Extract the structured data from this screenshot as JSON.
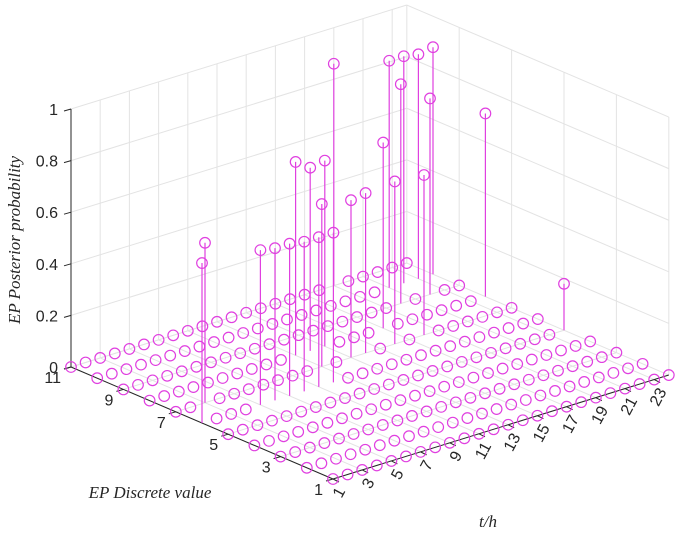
{
  "chart_data": {
    "type": "stem3",
    "xlabel": "t/h",
    "ylabel": "EP Discrete value",
    "zlabel": "EP Posterior probability",
    "x_range": [
      1,
      24
    ],
    "y_range": [
      1,
      11
    ],
    "zlim": [
      0,
      1
    ],
    "x_ticks": [
      "1",
      "3",
      "5",
      "7",
      "9",
      "11",
      "13",
      "15",
      "17",
      "19",
      "21",
      "23"
    ],
    "y_ticks": [
      "1",
      "3",
      "5",
      "7",
      "9",
      "11"
    ],
    "z_ticks": [
      "0",
      "0.2",
      "0.4",
      "0.6",
      "0.8",
      "1"
    ],
    "grid": true,
    "marker": "circle",
    "color": "#e040e0",
    "nonzero_stems": [
      {
        "t": 1,
        "value": 6,
        "p": 0.62
      },
      {
        "t": 3,
        "value": 7,
        "p": 0.62
      },
      {
        "t": 5,
        "value": 6,
        "p": 0.6
      },
      {
        "t": 6,
        "value": 6,
        "p": 0.59
      },
      {
        "t": 7,
        "value": 6,
        "p": 0.59
      },
      {
        "t": 8,
        "value": 6,
        "p": 0.58
      },
      {
        "t": 9,
        "value": 6,
        "p": 0.58
      },
      {
        "t": 10,
        "value": 6,
        "p": 0.58
      },
      {
        "t": 11,
        "value": 7,
        "p": 0.63
      },
      {
        "t": 11,
        "value": 8,
        "p": 0.75
      },
      {
        "t": 12,
        "value": 8,
        "p": 0.71
      },
      {
        "t": 13,
        "value": 8,
        "p": 0.72
      },
      {
        "t": 13,
        "value": 7,
        "p": 0.61
      },
      {
        "t": 14,
        "value": 7,
        "p": 0.62
      },
      {
        "t": 16,
        "value": 7,
        "p": 0.63
      },
      {
        "t": 17,
        "value": 8,
        "p": 0.72
      },
      {
        "t": 18,
        "value": 7,
        "p": 0.62
      },
      {
        "t": 19,
        "value": 11,
        "p": 0.86
      },
      {
        "t": 20,
        "value": 9,
        "p": 0.85
      },
      {
        "t": 21,
        "value": 10,
        "p": 0.88
      },
      {
        "t": 22,
        "value": 10,
        "p": 0.88
      },
      {
        "t": 22,
        "value": 9,
        "p": 0.76
      },
      {
        "t": 23,
        "value": 10,
        "p": 0.87
      },
      {
        "t": 24,
        "value": 10,
        "p": 0.88
      },
      {
        "t": 24,
        "value": 8,
        "p": 0.71
      },
      {
        "t": 24,
        "value": 5,
        "p": 0.18
      }
    ]
  }
}
